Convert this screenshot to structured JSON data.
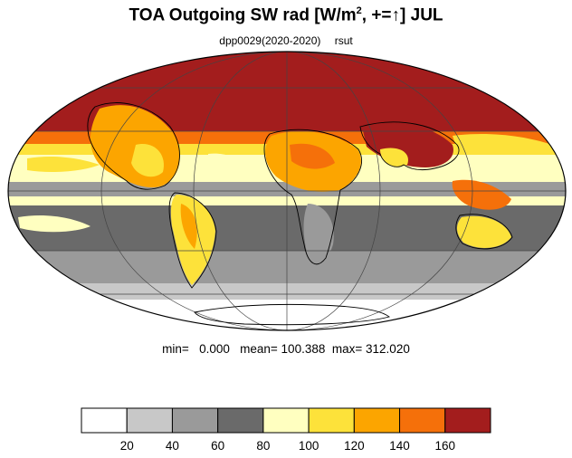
{
  "title": {
    "main": "TOA Outgoing SW rad [W/m",
    "sup": "2",
    "after": ", +=",
    "arrow": "↑",
    "end": "] JUL"
  },
  "subtitle": {
    "case": "dpp0029(2020-2020)",
    "variable": "rsut"
  },
  "stats": {
    "min_label": "min=",
    "min": "0.000",
    "mean_label": "mean=",
    "mean": "100.388",
    "max_label": "max=",
    "max": "312.020"
  },
  "colors": {
    "border": "#000000",
    "levels": [
      "#ffffff",
      "#c8c8c8",
      "#9a9a9a",
      "#6a6a6a",
      "#ffffc0",
      "#fde23a",
      "#fca500",
      "#f5700a",
      "#a31d1d"
    ]
  },
  "colorbar": {
    "boundaries": [
      "20",
      "40",
      "60",
      "80",
      "100",
      "120",
      "140",
      "160"
    ]
  }
}
